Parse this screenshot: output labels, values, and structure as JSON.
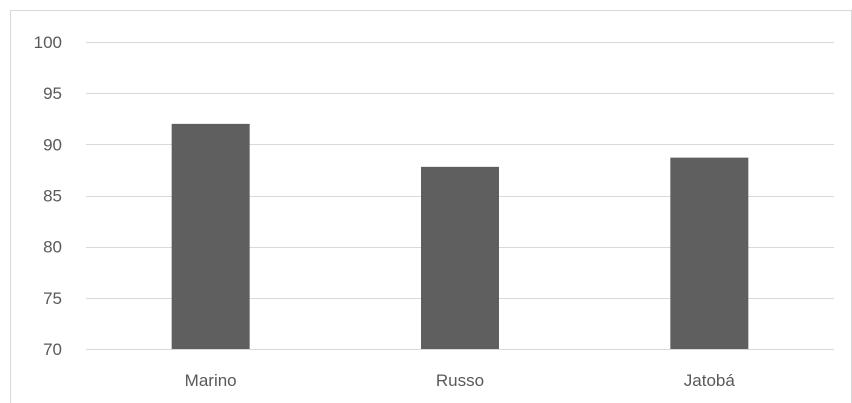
{
  "chart_data": {
    "type": "bar",
    "title": "",
    "xlabel": "",
    "ylabel": "",
    "categories": [
      "Marino",
      "Russo",
      "Jatobá"
    ],
    "values": [
      92,
      87.8,
      88.7
    ],
    "ylim": [
      70,
      100
    ],
    "yticks": [
      "70",
      "75",
      "80",
      "85",
      "90",
      "95",
      "100"
    ],
    "grid": true,
    "legend": "none",
    "colors": {
      "bar": "#5f5f5f",
      "grid": "#d9d9d9",
      "axis": "#d9d9d9",
      "text": "#595959",
      "border": "#d9d9d9"
    }
  }
}
